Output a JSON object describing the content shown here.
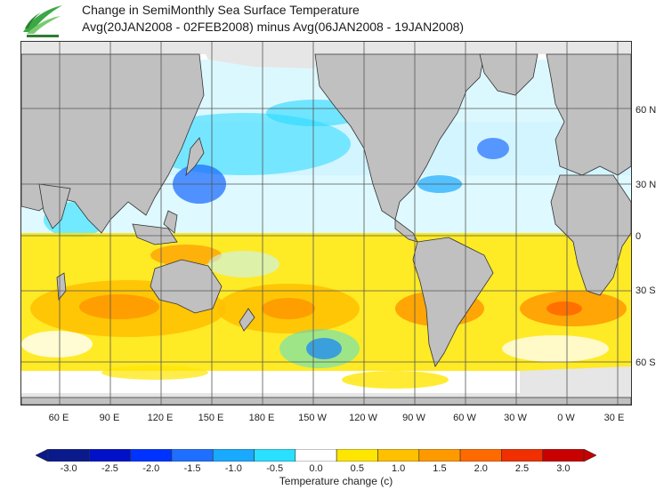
{
  "title": {
    "line1": "Change in SemiMonthly Sea Surface Temperature",
    "line2": "Avg(20JAN2008 - 02FEB2008) minus Avg(06JAN2008 - 19JAN2008)"
  },
  "lat_labels": [
    "60 N",
    "30 N",
    "0",
    "30 S",
    "60 S"
  ],
  "lon_labels": [
    "60 E",
    "90 E",
    "120 E",
    "150 E",
    "180 E",
    "150 W",
    "120 W",
    "90 W",
    "60 W",
    "30 W",
    "0 W",
    "30 E"
  ],
  "colorbar": {
    "ticks": [
      "-3.0",
      "-2.5",
      "-2.0",
      "-1.5",
      "-1.0",
      "-0.5",
      "0.0",
      "0.5",
      "1.0",
      "1.5",
      "2.0",
      "2.5",
      "3.0"
    ],
    "colors": [
      "#0a1a8c",
      "#0011c8",
      "#0033ff",
      "#1f6fff",
      "#19a9ff",
      "#28e0ff",
      "#ffffff",
      "#ffe600",
      "#ffc000",
      "#ff9900",
      "#ff6a00",
      "#f03000",
      "#c80000"
    ],
    "label": "Temperature change  (c)"
  },
  "colors": {
    "land": "#c0c0c0",
    "ice": "#e6e6e6",
    "grid": "#555555",
    "coast": "#333333"
  }
}
